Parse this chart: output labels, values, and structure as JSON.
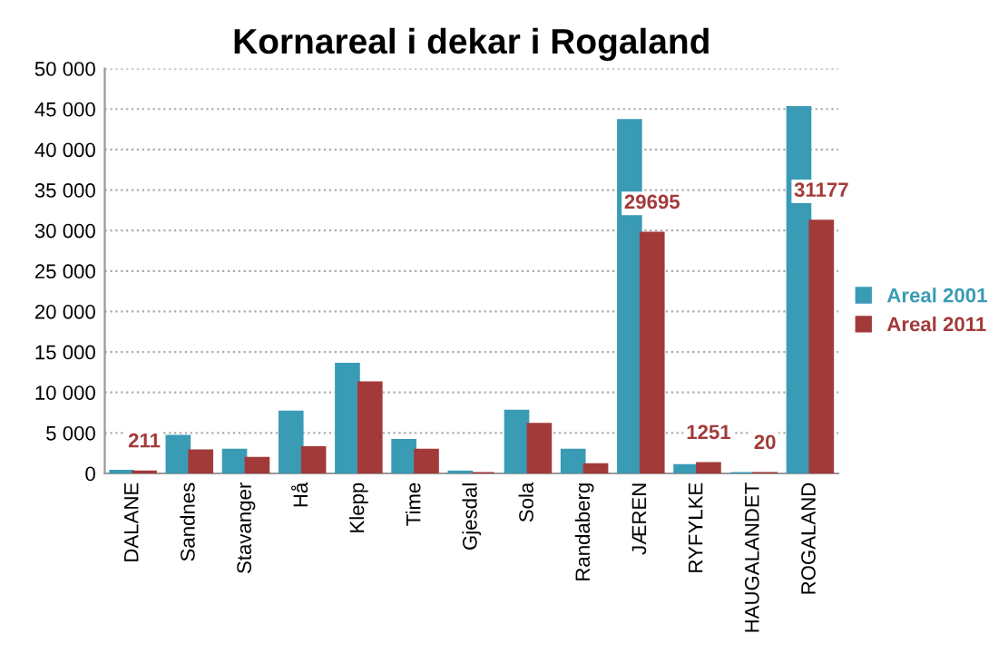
{
  "chart_data": {
    "type": "bar",
    "title": "Kornareal i dekar i Rogaland",
    "categories": [
      "DALANE",
      "Sandnes",
      "Stavanger",
      "Hå",
      "Klepp",
      "Time",
      "Gjesdal",
      "Sola",
      "Randaberg",
      "JÆREN",
      "RYFYLKE",
      "HAUGALANDET",
      "ROGALAND"
    ],
    "series": [
      {
        "name": "Areal 2001",
        "color": "#3a9bb5",
        "values": [
          300,
          4600,
          2900,
          7600,
          13500,
          4100,
          200,
          7700,
          2900,
          43600,
          1000,
          0,
          45200
        ]
      },
      {
        "name": "Areal 2011",
        "color": "#a33a3a",
        "values": [
          211,
          2800,
          1900,
          3200,
          11200,
          2900,
          0,
          6100,
          1100,
          29695,
          1251,
          20,
          31177
        ],
        "value_labels": [
          "211",
          null,
          null,
          null,
          null,
          null,
          null,
          null,
          null,
          "29695",
          "1251",
          "20",
          "31177"
        ]
      }
    ],
    "ylim": [
      0,
      50000
    ],
    "yticks": [
      {
        "value": 0,
        "label": "0"
      },
      {
        "value": 5000,
        "label": "5 000"
      },
      {
        "value": 10000,
        "label": "10 000"
      },
      {
        "value": 15000,
        "label": "15 000"
      },
      {
        "value": 20000,
        "label": "20 000"
      },
      {
        "value": 25000,
        "label": "25 000"
      },
      {
        "value": 30000,
        "label": "30 000"
      },
      {
        "value": 35000,
        "label": "35 000"
      },
      {
        "value": 40000,
        "label": "40 000"
      },
      {
        "value": 45000,
        "label": "45 000"
      },
      {
        "value": 50000,
        "label": "50 000"
      }
    ],
    "grid": "y",
    "legend": "right"
  }
}
